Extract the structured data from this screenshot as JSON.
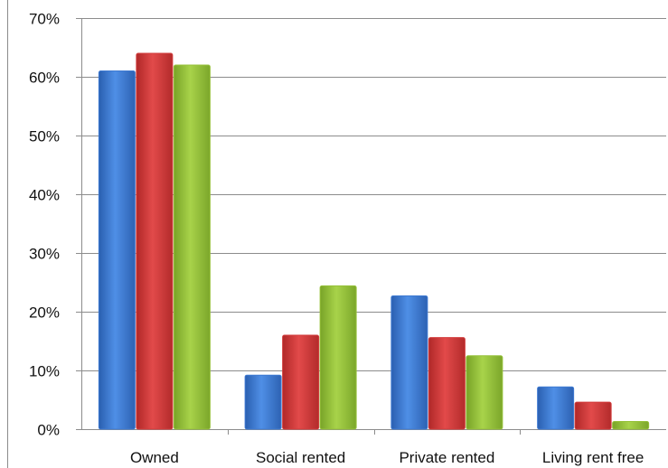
{
  "chart_data": {
    "type": "bar",
    "categories": [
      "Owned",
      "Social rented",
      "Private rented",
      "Living rent free"
    ],
    "series": [
      {
        "values": [
          61,
          9.2,
          22.7,
          7.2
        ],
        "color": "#3e7ad2"
      },
      {
        "values": [
          64,
          16,
          15.6,
          4.6
        ],
        "color": "#d23b3b"
      },
      {
        "values": [
          62,
          24.4,
          12.5,
          1.3
        ],
        "color": "#96c13a"
      }
    ],
    "y_tick_labels": [
      "0%",
      "10%",
      "20%",
      "30%",
      "40%",
      "50%",
      "60%",
      "70%"
    ],
    "ylim": [
      0,
      70
    ],
    "y_unit": "%",
    "grid": true,
    "legend": "none",
    "title": "",
    "xlabel": "",
    "ylabel": ""
  }
}
